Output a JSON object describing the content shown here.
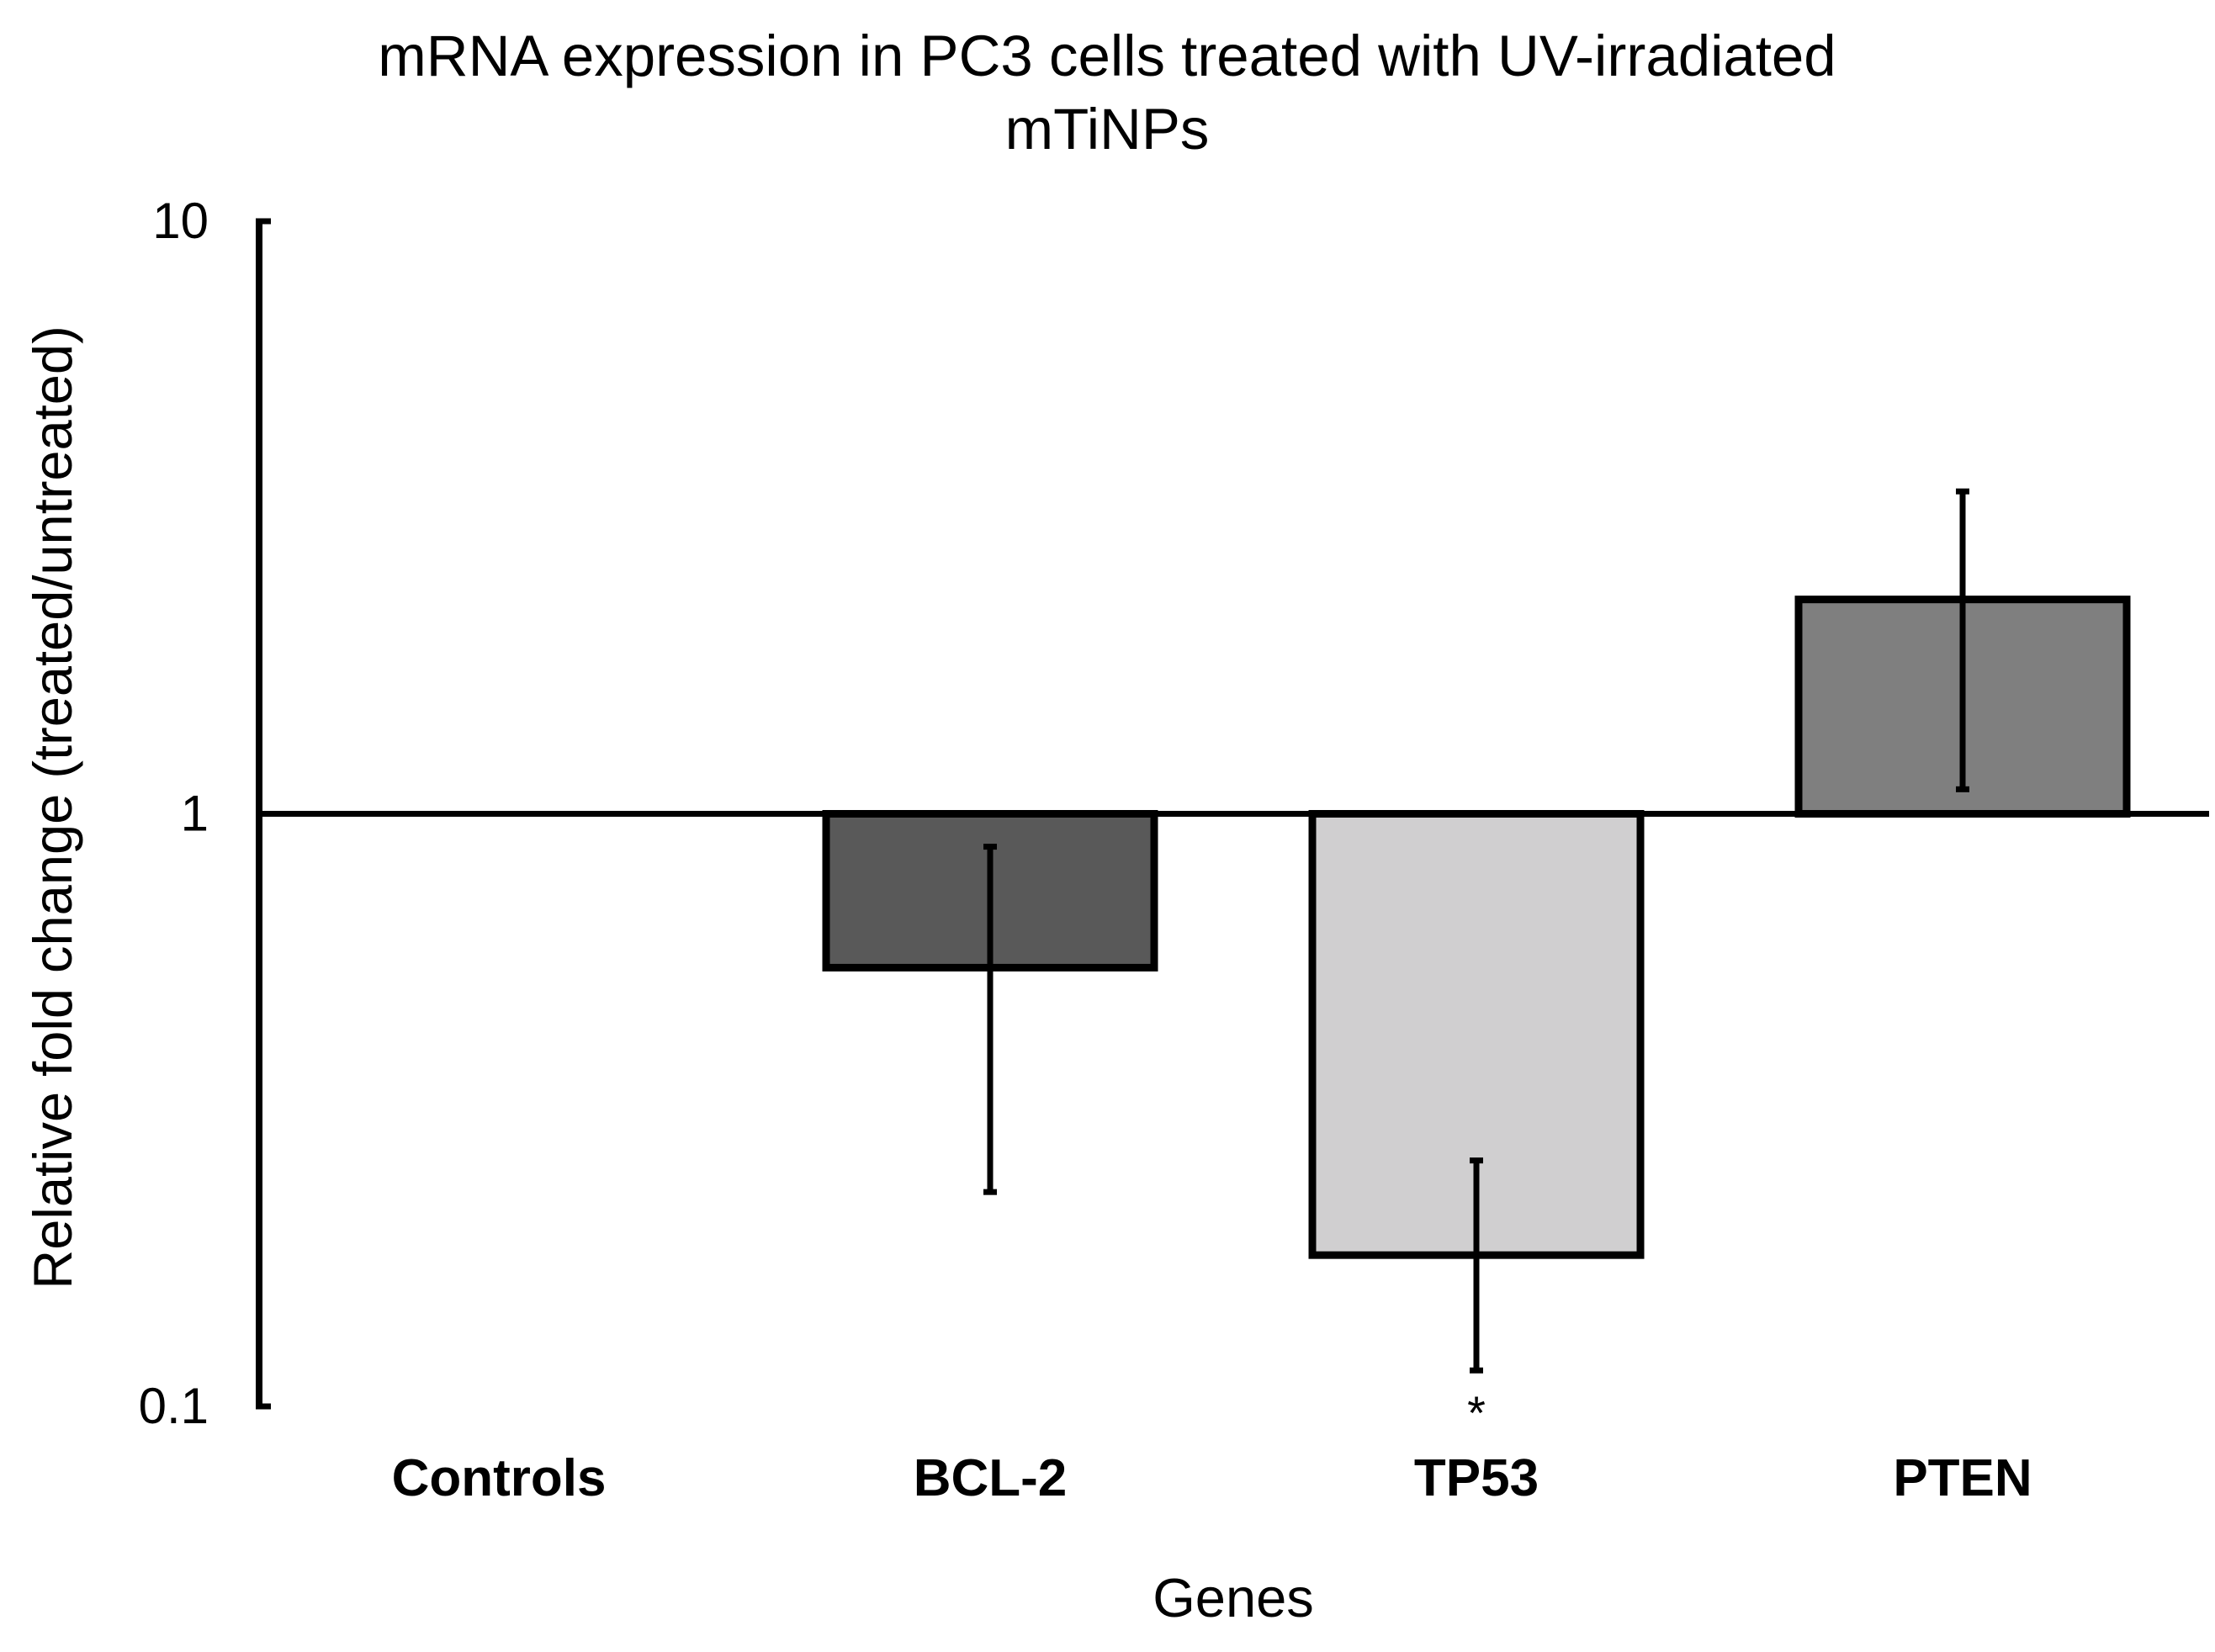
{
  "chart_data": {
    "type": "bar",
    "title_lines": [
      "mRNA expression in PC3 cells treated with UV-irradiated",
      "mTiNPs"
    ],
    "xlabel": "Genes",
    "ylabel": "Relative fold change  (treated/untreated)",
    "yscale": "log",
    "ylim": [
      0.1,
      10
    ],
    "yticks": [
      10,
      1,
      0.1
    ],
    "ytick_labels": [
      "10",
      "1",
      "0.1"
    ],
    "baseline": 1,
    "grid": false,
    "legend": "none",
    "categories": [
      "Controls",
      "BCL-2",
      "TP53",
      "PTEN"
    ],
    "values": [
      1,
      0.55,
      0.18,
      2.3
    ],
    "error_low": [
      null,
      0.23,
      0.115,
      1.1
    ],
    "error_high": [
      null,
      0.88,
      0.26,
      3.5
    ],
    "colors": [
      "#ffffff",
      "#595959",
      "#d0cfd0",
      "#7f7f7f"
    ],
    "annotations": [
      {
        "category": "TP53",
        "text": "*"
      }
    ]
  }
}
